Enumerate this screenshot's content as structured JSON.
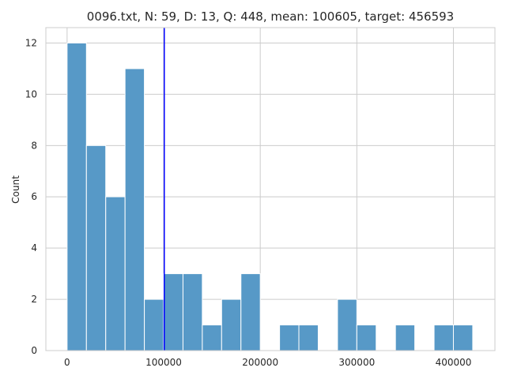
{
  "chart_data": {
    "type": "bar",
    "title": "0096.txt, N: 59, D: 13, Q: 448, mean: 100605, target: 456593",
    "xlabel": "",
    "ylabel": "Count",
    "xlim": [
      -22000,
      443000
    ],
    "ylim": [
      0,
      12.6
    ],
    "xticks": [
      0,
      100000,
      200000,
      300000,
      400000
    ],
    "yticks": [
      0,
      2,
      4,
      6,
      8,
      10,
      12
    ],
    "grid": true,
    "bin_width": 20000,
    "bins": [
      {
        "start": 0,
        "end": 20000,
        "count": 12
      },
      {
        "start": 20000,
        "end": 40000,
        "count": 8
      },
      {
        "start": 40000,
        "end": 60000,
        "count": 6
      },
      {
        "start": 60000,
        "end": 80000,
        "count": 11
      },
      {
        "start": 80000,
        "end": 100000,
        "count": 2
      },
      {
        "start": 100000,
        "end": 120000,
        "count": 3
      },
      {
        "start": 120000,
        "end": 140000,
        "count": 3
      },
      {
        "start": 140000,
        "end": 160000,
        "count": 1
      },
      {
        "start": 160000,
        "end": 180000,
        "count": 2
      },
      {
        "start": 180000,
        "end": 200000,
        "count": 3
      },
      {
        "start": 200000,
        "end": 220000,
        "count": 0
      },
      {
        "start": 220000,
        "end": 240000,
        "count": 1
      },
      {
        "start": 240000,
        "end": 260000,
        "count": 1
      },
      {
        "start": 260000,
        "end": 280000,
        "count": 0
      },
      {
        "start": 280000,
        "end": 300000,
        "count": 2
      },
      {
        "start": 300000,
        "end": 320000,
        "count": 1
      },
      {
        "start": 320000,
        "end": 340000,
        "count": 0
      },
      {
        "start": 340000,
        "end": 360000,
        "count": 1
      },
      {
        "start": 360000,
        "end": 380000,
        "count": 0
      },
      {
        "start": 380000,
        "end": 400000,
        "count": 1
      },
      {
        "start": 400000,
        "end": 420000,
        "count": 1
      }
    ],
    "mean_line": {
      "x": 100605
    },
    "colors": {
      "bar": "#5799c7",
      "bar_edge": "#ffffff",
      "mean_line": "#0000ff",
      "grid": "#cccccc",
      "frame": "#cccccc"
    }
  }
}
